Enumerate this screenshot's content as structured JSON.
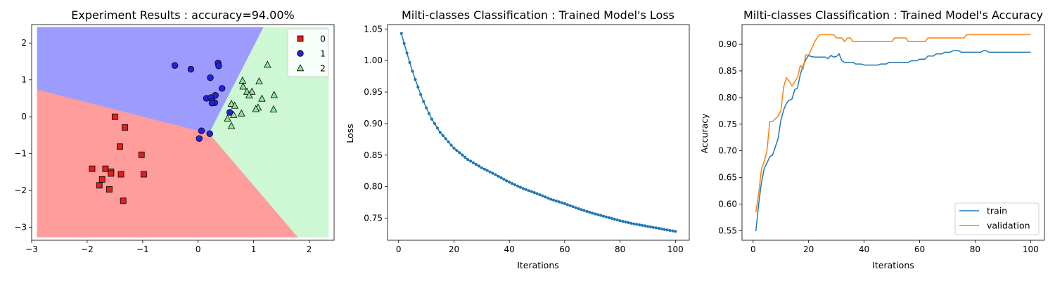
{
  "chart_data": [
    {
      "type": "scatter",
      "title": "Experiment Results : accuracy=94.00%",
      "xlabel": "",
      "ylabel": "",
      "xlim": [
        -3,
        2.45
      ],
      "ylim": [
        -3.35,
        2.5
      ],
      "xticks": [
        -3,
        -2,
        -1,
        0,
        1,
        2
      ],
      "yticks": [
        -3,
        -2,
        -1,
        0,
        1,
        2
      ],
      "xtick_labels": [
        "−3",
        "−2",
        "−1",
        "0",
        "1",
        "2"
      ],
      "ytick_labels": [
        "−3",
        "−2",
        "−1",
        "0",
        "1",
        "2"
      ],
      "grid": false,
      "legend_position": "top-right",
      "regions": [
        {
          "class": "0",
          "color": "#ff9c9c"
        },
        {
          "class": "1",
          "color": "#9c9cff"
        },
        {
          "class": "2",
          "color": "#cef7d3"
        }
      ],
      "series": [
        {
          "name": "0",
          "marker": "square",
          "color": "#e01f1f",
          "points": [
            [
              -1.5,
              0.0
            ],
            [
              -1.32,
              -0.29
            ],
            [
              -1.41,
              -0.81
            ],
            [
              -1.02,
              -1.03
            ],
            [
              -1.91,
              -1.41
            ],
            [
              -1.67,
              -1.41
            ],
            [
              -1.57,
              -1.49
            ],
            [
              -1.57,
              -1.54
            ],
            [
              -1.39,
              -1.56
            ],
            [
              -0.98,
              -1.56
            ],
            [
              -1.73,
              -1.7
            ],
            [
              -1.78,
              -1.86
            ],
            [
              -1.6,
              -1.97
            ],
            [
              -1.35,
              -2.28
            ]
          ]
        },
        {
          "name": "1",
          "marker": "circle",
          "color": "#2323dc",
          "points": [
            [
              -0.42,
              1.39
            ],
            [
              -0.13,
              1.29
            ],
            [
              0.36,
              1.46
            ],
            [
              0.37,
              1.38
            ],
            [
              0.22,
              1.06
            ],
            [
              0.43,
              0.77
            ],
            [
              0.31,
              0.58
            ],
            [
              0.15,
              0.5
            ],
            [
              0.23,
              0.52
            ],
            [
              0.26,
              0.42
            ],
            [
              0.3,
              0.38
            ],
            [
              0.25,
              0.37
            ],
            [
              0.57,
              0.12
            ],
            [
              0.06,
              -0.38
            ],
            [
              0.21,
              -0.46
            ],
            [
              0.02,
              -0.59
            ]
          ]
        },
        {
          "name": "2",
          "marker": "triangle",
          "color": "#8fe59a",
          "points": [
            [
              1.25,
              1.41
            ],
            [
              0.8,
              0.98
            ],
            [
              1.1,
              0.96
            ],
            [
              0.81,
              0.82
            ],
            [
              0.88,
              0.68
            ],
            [
              0.97,
              0.68
            ],
            [
              0.92,
              0.58
            ],
            [
              1.37,
              0.59
            ],
            [
              1.15,
              0.49
            ],
            [
              0.6,
              0.35
            ],
            [
              0.66,
              0.3
            ],
            [
              1.08,
              0.25
            ],
            [
              1.04,
              0.21
            ],
            [
              1.36,
              0.2
            ],
            [
              0.78,
              0.09
            ],
            [
              0.64,
              0.05
            ],
            [
              0.53,
              -0.05
            ],
            [
              0.6,
              -0.25
            ]
          ]
        }
      ]
    },
    {
      "type": "line",
      "title": "Milti-classes Classification : Trained Model's Loss",
      "xlabel": "Iterations",
      "ylabel": "Loss",
      "xlim": [
        -4,
        105
      ],
      "ylim": [
        0.715,
        1.057
      ],
      "xticks": [
        0,
        20,
        40,
        60,
        80,
        100
      ],
      "yticks": [
        0.75,
        0.8,
        0.85,
        0.9,
        0.95,
        1.0,
        1.05
      ],
      "ytick_labels": [
        "0.75",
        "0.80",
        "0.85",
        "0.90",
        "0.95",
        "1.00",
        "1.05"
      ],
      "grid": false,
      "series": [
        {
          "name": "",
          "color": "#1f77b4",
          "markers": true,
          "x_start": 1,
          "x_end": 100,
          "key_points": [
            [
              1,
              1.043
            ],
            [
              2,
              1.027
            ],
            [
              3,
              1.012
            ],
            [
              4,
              0.997
            ],
            [
              5,
              0.983
            ],
            [
              6,
              0.97
            ],
            [
              7,
              0.958
            ],
            [
              8,
              0.946
            ],
            [
              9,
              0.935
            ],
            [
              10,
              0.925
            ],
            [
              12,
              0.907
            ],
            [
              15,
              0.886
            ],
            [
              20,
              0.861
            ],
            [
              25,
              0.843
            ],
            [
              30,
              0.83
            ],
            [
              35,
              0.819
            ],
            [
              40,
              0.807
            ],
            [
              45,
              0.797
            ],
            [
              50,
              0.789
            ],
            [
              55,
              0.78
            ],
            [
              60,
              0.773
            ],
            [
              65,
              0.765
            ],
            [
              70,
              0.758
            ],
            [
              75,
              0.752
            ],
            [
              80,
              0.746
            ],
            [
              85,
              0.741
            ],
            [
              90,
              0.737
            ],
            [
              95,
              0.733
            ],
            [
              100,
              0.729
            ]
          ]
        }
      ]
    },
    {
      "type": "line",
      "title": "Milti-classes Classification : Trained Model's Accuracy",
      "xlabel": "Iterations",
      "ylabel": "Accuracy",
      "xlim": [
        -4,
        105
      ],
      "ylim": [
        0.532,
        0.937
      ],
      "xticks": [
        0,
        20,
        40,
        60,
        80,
        100
      ],
      "yticks": [
        0.55,
        0.6,
        0.65,
        0.7,
        0.75,
        0.8,
        0.85,
        0.9
      ],
      "ytick_labels": [
        "0.55",
        "0.60",
        "0.65",
        "0.70",
        "0.75",
        "0.80",
        "0.85",
        "0.90"
      ],
      "grid": false,
      "legend_position": "bottom-right",
      "series": [
        {
          "name": "train",
          "color": "#1f77b4",
          "points": [
            [
              1,
              0.549
            ],
            [
              2,
              0.6
            ],
            [
              3,
              0.64
            ],
            [
              4,
              0.667
            ],
            [
              5,
              0.677
            ],
            [
              6,
              0.689
            ],
            [
              7,
              0.692
            ],
            [
              8,
              0.707
            ],
            [
              9,
              0.723
            ],
            [
              10,
              0.757
            ],
            [
              11,
              0.777
            ],
            [
              12,
              0.789
            ],
            [
              13,
              0.795
            ],
            [
              14,
              0.797
            ],
            [
              15,
              0.815
            ],
            [
              16,
              0.818
            ],
            [
              17,
              0.843
            ],
            [
              18,
              0.86
            ],
            [
              19,
              0.871
            ],
            [
              20,
              0.879
            ],
            [
              21,
              0.877
            ],
            [
              22,
              0.876
            ],
            [
              24,
              0.876
            ],
            [
              26,
              0.876
            ],
            [
              27,
              0.873
            ],
            [
              28,
              0.879
            ],
            [
              29,
              0.876
            ],
            [
              30,
              0.877
            ],
            [
              31,
              0.882
            ],
            [
              32,
              0.869
            ],
            [
              33,
              0.866
            ],
            [
              36,
              0.866
            ],
            [
              37,
              0.863
            ],
            [
              39,
              0.863
            ],
            [
              40,
              0.861
            ],
            [
              45,
              0.861
            ],
            [
              46,
              0.863
            ],
            [
              48,
              0.863
            ],
            [
              49,
              0.866
            ],
            [
              56,
              0.866
            ],
            [
              57,
              0.869
            ],
            [
              59,
              0.869
            ],
            [
              60,
              0.872
            ],
            [
              62,
              0.872
            ],
            [
              63,
              0.878
            ],
            [
              65,
              0.878
            ],
            [
              66,
              0.882
            ],
            [
              68,
              0.882
            ],
            [
              69,
              0.885
            ],
            [
              71,
              0.885
            ],
            [
              72,
              0.888
            ],
            [
              74,
              0.888
            ],
            [
              75,
              0.885
            ],
            [
              82,
              0.885
            ],
            [
              83,
              0.888
            ],
            [
              84,
              0.888
            ],
            [
              85,
              0.885
            ],
            [
              100,
              0.885
            ]
          ]
        },
        {
          "name": "validation",
          "color": "#ff7f0e",
          "points": [
            [
              1,
              0.585
            ],
            [
              2,
              0.62
            ],
            [
              3,
              0.665
            ],
            [
              4,
              0.68
            ],
            [
              5,
              0.7
            ],
            [
              6,
              0.755
            ],
            [
              7,
              0.755
            ],
            [
              8,
              0.76
            ],
            [
              9,
              0.765
            ],
            [
              10,
              0.775
            ],
            [
              11,
              0.82
            ],
            [
              12,
              0.837
            ],
            [
              13,
              0.831
            ],
            [
              14,
              0.822
            ],
            [
              15,
              0.83
            ],
            [
              16,
              0.838
            ],
            [
              17,
              0.86
            ],
            [
              18,
              0.854
            ],
            [
              19,
              0.88
            ],
            [
              20,
              0.88
            ],
            [
              21,
              0.89
            ],
            [
              22,
              0.903
            ],
            [
              23,
              0.912
            ],
            [
              24,
              0.918
            ],
            [
              25,
              0.918
            ],
            [
              29,
              0.918
            ],
            [
              30,
              0.912
            ],
            [
              32,
              0.912
            ],
            [
              33,
              0.905
            ],
            [
              34,
              0.912
            ],
            [
              35,
              0.912
            ],
            [
              36,
              0.905
            ],
            [
              50,
              0.905
            ],
            [
              51,
              0.912
            ],
            [
              55,
              0.912
            ],
            [
              56,
              0.905
            ],
            [
              62,
              0.905
            ],
            [
              63,
              0.912
            ],
            [
              76,
              0.912
            ],
            [
              77,
              0.918
            ],
            [
              100,
              0.918
            ]
          ]
        }
      ]
    }
  ]
}
